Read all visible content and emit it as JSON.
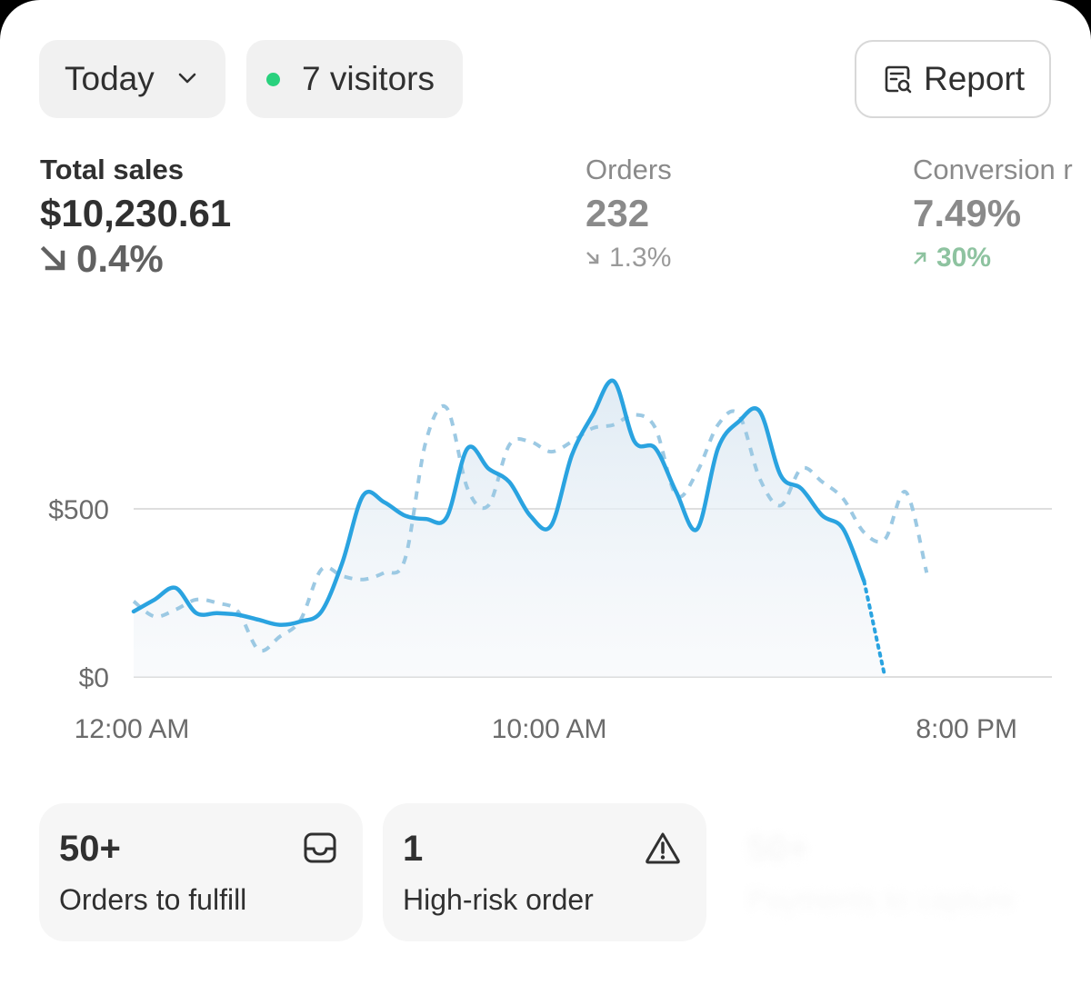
{
  "filters": {
    "period_label": "Today",
    "visitors_label": "7 visitors",
    "report_label": "Report"
  },
  "metrics": {
    "total_sales": {
      "label": "Total sales",
      "value": "$10,230.61",
      "change": "0.4%",
      "direction": "down"
    },
    "orders": {
      "label": "Orders",
      "value": "232",
      "change": "1.3%",
      "direction": "down"
    },
    "conversion": {
      "label": "Conversion r",
      "value": "7.49%",
      "change": "30%",
      "direction": "up"
    }
  },
  "colors": {
    "accent": "#2aa3e0",
    "comparison": "#9cc9e3",
    "positive": "#8ec3a0",
    "live_dot": "#29d17d"
  },
  "chart_data": {
    "type": "line",
    "ylabel": "",
    "y_ticks": [
      "$500",
      "$0"
    ],
    "x_ticks": [
      "12:00 AM",
      "10:00 AM",
      "8:00 PM"
    ],
    "ylim": [
      0,
      1040
    ],
    "x_hours": [
      0,
      0.5,
      1,
      1.5,
      2,
      2.5,
      3,
      3.5,
      4,
      4.5,
      5,
      5.5,
      6,
      6.5,
      7,
      7.5,
      8,
      8.5,
      9,
      9.5,
      10,
      10.5,
      11,
      11.5,
      12,
      12.5,
      13,
      13.5,
      14,
      14.5,
      15,
      15.5,
      16,
      16.5,
      17,
      17.5,
      18,
      18.5,
      19,
      19.5,
      20,
      20.5,
      21,
      21.5,
      22
    ],
    "series": [
      {
        "style": "solid",
        "values": [
          195,
          230,
          265,
          190,
          190,
          185,
          170,
          155,
          165,
          195,
          340,
          540,
          520,
          480,
          470,
          475,
          680,
          620,
          580,
          480,
          450,
          660,
          780,
          880,
          700,
          680,
          550,
          440,
          680,
          760,
          790,
          600,
          560,
          480,
          440,
          285,
          null,
          null,
          null,
          null,
          null,
          null,
          null,
          null,
          null
        ]
      },
      {
        "style": "dotted-projection",
        "values": [
          null,
          null,
          null,
          null,
          null,
          null,
          null,
          null,
          null,
          null,
          null,
          null,
          null,
          null,
          null,
          null,
          null,
          null,
          null,
          null,
          null,
          null,
          null,
          null,
          null,
          null,
          null,
          null,
          null,
          null,
          null,
          null,
          null,
          null,
          null,
          285,
          0,
          null,
          null,
          null,
          null,
          null,
          null,
          null,
          null
        ]
      },
      {
        "style": "dashed",
        "values": [
          225,
          180,
          200,
          230,
          220,
          195,
          80,
          120,
          170,
          320,
          300,
          290,
          310,
          350,
          700,
          800,
          560,
          510,
          690,
          700,
          670,
          700,
          740,
          750,
          780,
          740,
          540,
          610,
          750,
          780,
          590,
          510,
          620,
          580,
          530,
          430,
          410,
          550,
          310,
          null,
          null,
          null,
          null,
          null,
          null
        ]
      }
    ]
  },
  "cards": {
    "fulfill": {
      "count": "50+",
      "label": "Orders to fulfill",
      "icon": "inbox-icon"
    },
    "risk": {
      "count": "1",
      "label": "High-risk order",
      "icon": "warning-icon"
    },
    "ghost": {
      "count": "50+",
      "label": "Payments to capture"
    }
  }
}
